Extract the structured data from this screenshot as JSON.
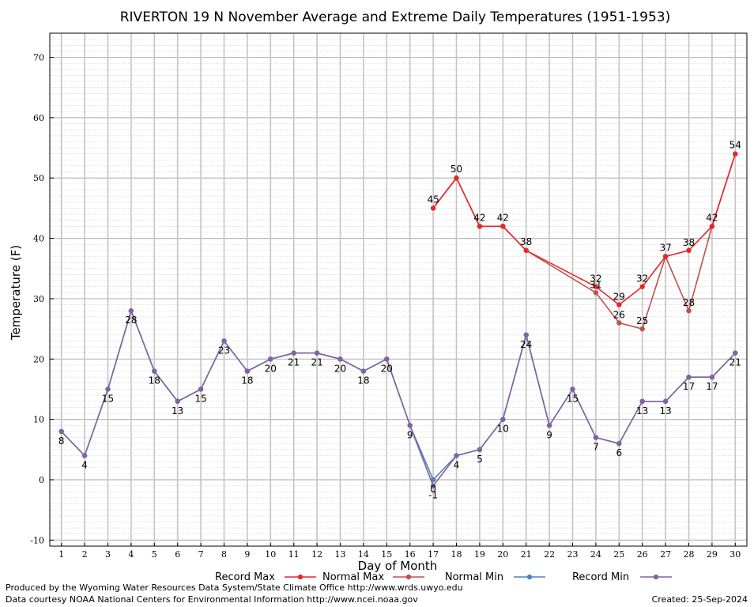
{
  "chart_data": {
    "type": "line",
    "title": "RIVERTON 19 N November Average and Extreme Daily Temperatures (1951-1953)",
    "xlabel": "Day of Month",
    "ylabel": "Temperature (F)",
    "xlim": [
      0.5,
      30.5
    ],
    "ylim": [
      -11,
      74
    ],
    "yticks": [
      -10,
      0,
      10,
      20,
      30,
      40,
      50,
      60,
      70
    ],
    "grid": true,
    "categories": [
      1,
      2,
      3,
      4,
      5,
      6,
      7,
      8,
      9,
      10,
      11,
      12,
      13,
      14,
      15,
      16,
      17,
      18,
      19,
      20,
      21,
      22,
      23,
      24,
      25,
      26,
      27,
      28,
      29,
      30
    ],
    "series": [
      {
        "name": "Record Max",
        "color": "#e8262a",
        "values": [
          null,
          null,
          null,
          null,
          null,
          null,
          null,
          null,
          null,
          null,
          null,
          null,
          null,
          null,
          null,
          null,
          45,
          50,
          42,
          42,
          38,
          null,
          null,
          32,
          29,
          32,
          37,
          38,
          42,
          54
        ]
      },
      {
        "name": "Normal Max",
        "color": "#c0504d",
        "values": [
          null,
          null,
          null,
          null,
          null,
          null,
          null,
          null,
          null,
          null,
          null,
          null,
          null,
          null,
          null,
          null,
          45,
          50,
          42,
          42,
          38,
          null,
          null,
          31,
          26,
          25,
          37,
          28,
          42,
          54
        ]
      },
      {
        "name": "Normal Min",
        "color": "#4f81bd",
        "values": [
          8,
          4,
          15,
          28,
          18,
          13,
          15,
          23,
          18,
          20,
          21,
          21,
          20,
          18,
          20,
          9,
          0,
          4,
          5,
          10,
          24,
          9,
          15,
          7,
          6,
          13,
          13,
          17,
          17,
          21
        ]
      },
      {
        "name": "Record Min",
        "color": "#8064a2",
        "values": [
          8,
          4,
          15,
          28,
          18,
          13,
          15,
          23,
          18,
          20,
          21,
          21,
          20,
          18,
          20,
          9,
          -1,
          4,
          5,
          10,
          24,
          9,
          15,
          7,
          6,
          13,
          13,
          17,
          17,
          21
        ]
      }
    ],
    "data_labels": {
      "upper": [
        {
          "day": 17,
          "text": "45"
        },
        {
          "day": 18,
          "text": "50"
        },
        {
          "day": 19,
          "text": "42"
        },
        {
          "day": 20,
          "text": "42"
        },
        {
          "day": 21,
          "text": "38"
        },
        {
          "day": 24,
          "text": "32"
        },
        {
          "day": 24,
          "text": "31"
        },
        {
          "day": 25,
          "text": "29"
        },
        {
          "day": 25,
          "text": "26"
        },
        {
          "day": 26,
          "text": "32"
        },
        {
          "day": 26,
          "text": "25"
        },
        {
          "day": 27,
          "text": "37"
        },
        {
          "day": 28,
          "text": "38"
        },
        {
          "day": 28,
          "text": "28"
        },
        {
          "day": 29,
          "text": "42"
        },
        {
          "day": 30,
          "text": "54"
        }
      ],
      "lower": [
        {
          "day": 1,
          "text": "8"
        },
        {
          "day": 2,
          "text": "4"
        },
        {
          "day": 3,
          "text": "15"
        },
        {
          "day": 4,
          "text": "28"
        },
        {
          "day": 5,
          "text": "18"
        },
        {
          "day": 6,
          "text": "13"
        },
        {
          "day": 7,
          "text": "15"
        },
        {
          "day": 8,
          "text": "23"
        },
        {
          "day": 9,
          "text": "18"
        },
        {
          "day": 10,
          "text": "20"
        },
        {
          "day": 11,
          "text": "21"
        },
        {
          "day": 12,
          "text": "21"
        },
        {
          "day": 13,
          "text": "20"
        },
        {
          "day": 14,
          "text": "18"
        },
        {
          "day": 15,
          "text": "20"
        },
        {
          "day": 16,
          "text": "9"
        },
        {
          "day": 17,
          "text": "0"
        },
        {
          "day": 17,
          "text": "-1"
        },
        {
          "day": 18,
          "text": "4"
        },
        {
          "day": 19,
          "text": "5"
        },
        {
          "day": 20,
          "text": "10"
        },
        {
          "day": 21,
          "text": "24"
        },
        {
          "day": 22,
          "text": "9"
        },
        {
          "day": 23,
          "text": "15"
        },
        {
          "day": 24,
          "text": "7"
        },
        {
          "day": 25,
          "text": "6"
        },
        {
          "day": 26,
          "text": "13"
        },
        {
          "day": 27,
          "text": "13"
        },
        {
          "day": 28,
          "text": "17"
        },
        {
          "day": 29,
          "text": "17"
        },
        {
          "day": 30,
          "text": "21"
        }
      ]
    },
    "legend": {
      "placement": "bottom",
      "items": [
        "Record Max",
        "Normal Max",
        "Normal Min",
        "Record Min"
      ]
    }
  },
  "footer": {
    "produced_by": "Produced by the Wyoming Water Resources Data System/State Climate Office http://www.wrds.uwyo.edu",
    "data_courtesy": "Data courtesy NOAA National Centers for Environmental Information http://www.ncei.noaa.gov",
    "created": "Created:  25-Sep-2024"
  }
}
